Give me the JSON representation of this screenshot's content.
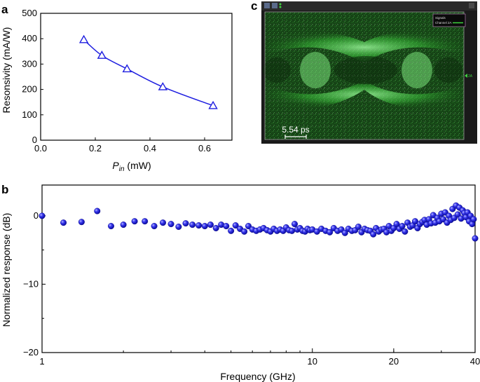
{
  "panel_labels": {
    "a": "a",
    "b": "b",
    "c": "c"
  },
  "colors": {
    "series": "#1f1fe0",
    "scope_bg": "#0d1a0d",
    "scope_trace": "#3fd23f"
  },
  "chart_data": [
    {
      "id": "a",
      "type": "line",
      "title": "",
      "xlabel_main": "P",
      "xlabel_sub": "in",
      "xlabel_unit": " (mW)",
      "ylabel": "Resonsivity (mA/W)",
      "xlim": [
        0,
        0.7
      ],
      "ylim": [
        0,
        500
      ],
      "xticks": [
        0,
        0.2,
        0.4,
        0.6
      ],
      "xtick_labels": [
        "0.0",
        "0.2",
        "0.4",
        "0.6"
      ],
      "yticks": [
        0,
        100,
        200,
        300,
        400,
        500
      ],
      "ytick_labels": [
        "0",
        "100",
        "200",
        "300",
        "400",
        "500"
      ],
      "marker": "open-triangle",
      "series": [
        {
          "x": [
            0.158,
            0.224,
            0.316,
            0.447,
            0.631
          ],
          "y": [
            396,
            334,
            281,
            210,
            136
          ]
        }
      ]
    },
    {
      "id": "b",
      "type": "scatter",
      "title": "",
      "xlabel": "Frequency (GHz)",
      "ylabel": "Normalized response (dB)",
      "xscale": "log",
      "xlim": [
        1,
        40
      ],
      "ylim": [
        -20,
        4.5
      ],
      "xticks": [
        1,
        10,
        20,
        40
      ],
      "xtick_labels": [
        "1",
        "10",
        "20",
        "40"
      ],
      "yticks": [
        0,
        -10,
        -20
      ],
      "ytick_labels": [
        "0",
        "−10",
        "−20"
      ],
      "marker": "filled-sphere",
      "series": [
        {
          "x": [
            1.0,
            1.2,
            1.4,
            1.6,
            1.8,
            2.0,
            2.2,
            2.4,
            2.6,
            2.8,
            3.0,
            3.2,
            3.4,
            3.6,
            3.8,
            4.0,
            4.2,
            4.4,
            4.6,
            4.8,
            5.0,
            5.2,
            5.4,
            5.6,
            5.8,
            6.0,
            6.2,
            6.4,
            6.6,
            6.8,
            7.0,
            7.2,
            7.4,
            7.6,
            7.8,
            8.0,
            8.2,
            8.4,
            8.6,
            8.8,
            9.0,
            9.2,
            9.4,
            9.6,
            9.8,
            10.0,
            10.4,
            10.8,
            11.2,
            11.6,
            12.0,
            12.4,
            12.8,
            13.2,
            13.6,
            14.0,
            14.4,
            14.8,
            15.2,
            15.6,
            16.0,
            16.4,
            16.8,
            17.2,
            17.6,
            18.0,
            18.4,
            18.8,
            19.2,
            19.6,
            20.0,
            20.5,
            21.0,
            21.5,
            22.0,
            22.5,
            23.0,
            23.5,
            24.0,
            24.5,
            25.0,
            25.5,
            26.0,
            26.5,
            27.0,
            27.5,
            28.0,
            28.5,
            29.0,
            29.5,
            30.0,
            30.5,
            31.0,
            31.5,
            32.0,
            32.5,
            33.0,
            33.5,
            34.0,
            34.5,
            35.0,
            35.5,
            36.0,
            36.5,
            37.0,
            37.5,
            38.0,
            38.5,
            39.0,
            39.5,
            40.0
          ],
          "y": [
            0.0,
            -1.0,
            -0.9,
            0.7,
            -1.5,
            -1.3,
            -0.8,
            -0.8,
            -1.5,
            -1.0,
            -1.2,
            -1.6,
            -1.1,
            -1.3,
            -1.4,
            -1.5,
            -1.3,
            -1.8,
            -1.3,
            -1.5,
            -2.2,
            -1.4,
            -1.9,
            -2.3,
            -1.5,
            -2.0,
            -2.2,
            -2.0,
            -1.8,
            -2.1,
            -2.3,
            -1.9,
            -2.2,
            -2.0,
            -2.2,
            -1.7,
            -2.1,
            -2.2,
            -1.2,
            -2.0,
            -1.8,
            -2.2,
            -2.3,
            -1.9,
            -2.1,
            -2.0,
            -2.3,
            -1.9,
            -2.2,
            -2.4,
            -1.8,
            -2.2,
            -2.0,
            -2.5,
            -1.9,
            -2.2,
            -2.1,
            -1.6,
            -2.4,
            -1.9,
            -2.1,
            -2.2,
            -2.7,
            -1.8,
            -2.3,
            -2.0,
            -1.9,
            -2.4,
            -1.5,
            -2.2,
            -1.8,
            -1.2,
            -1.9,
            -1.5,
            -2.3,
            -1.0,
            -1.6,
            -1.4,
            -0.8,
            -1.8,
            -1.2,
            -0.9,
            -0.6,
            -1.3,
            -0.5,
            -1.1,
            0.1,
            -1.0,
            -0.3,
            -0.8,
            0.3,
            -0.5,
            0.5,
            -1.0,
            0.0,
            -0.6,
            1.0,
            -0.3,
            1.5,
            0.2,
            1.2,
            -0.4,
            0.8,
            0.4,
            -0.2,
            0.5,
            -0.8,
            0.0,
            -1.2,
            -0.5,
            -3.3
          ]
        }
      ]
    }
  ],
  "scope": {
    "id": "c",
    "menu_text": "",
    "legend_items": [
      "Signals",
      "Channel 2A"
    ],
    "channel_marker": "2A",
    "scale_bar_label": "5.54 ps"
  }
}
